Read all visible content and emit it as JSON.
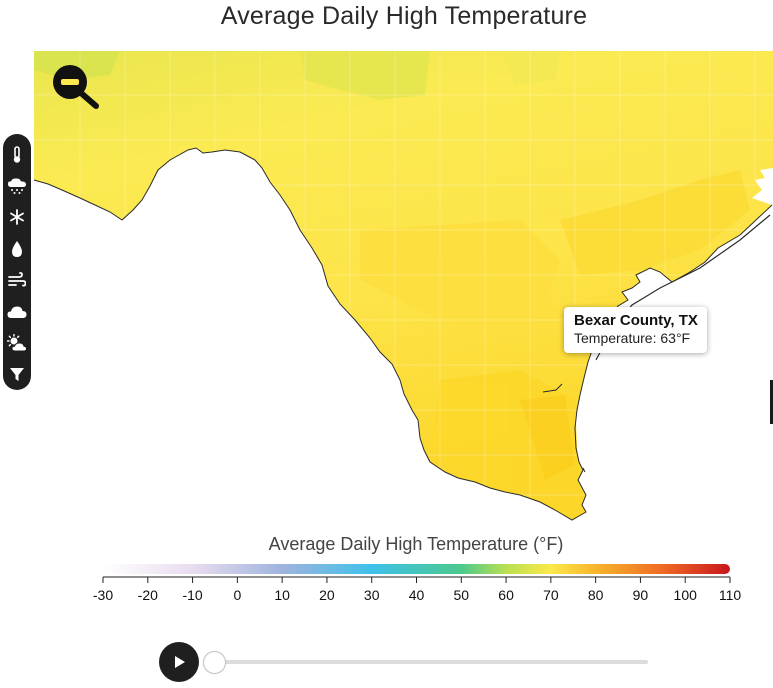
{
  "title": "Average Daily High Temperature",
  "tooltip": {
    "county": "Bexar County, TX",
    "temperature_text": "Temperature: 63°F"
  },
  "legend": {
    "title": "Average Daily High Temperature (°F)",
    "ticks": [
      "-30",
      "-20",
      "-10",
      "0",
      "10",
      "20",
      "30",
      "40",
      "50",
      "60",
      "70",
      "80",
      "90",
      "100",
      "110"
    ],
    "color_stops": [
      {
        "value": -30,
        "color": "#ffffff"
      },
      {
        "value": -10,
        "color": "#e8dcef"
      },
      {
        "value": 10,
        "color": "#9fb4de"
      },
      {
        "value": 30,
        "color": "#3ec1ea"
      },
      {
        "value": 50,
        "color": "#4dc98d"
      },
      {
        "value": 60,
        "color": "#b9df52"
      },
      {
        "value": 70,
        "color": "#fbe94a"
      },
      {
        "value": 80,
        "color": "#f7b52c"
      },
      {
        "value": 95,
        "color": "#ef6a24"
      },
      {
        "value": 110,
        "color": "#c8161d"
      }
    ]
  },
  "toolbar": [
    {
      "icon": "thermometer-icon"
    },
    {
      "icon": "rain-icon"
    },
    {
      "icon": "snowflake-icon"
    },
    {
      "icon": "droplet-icon"
    },
    {
      "icon": "wind-icon"
    },
    {
      "icon": "cloud-icon"
    },
    {
      "icon": "partly-sunny-icon"
    },
    {
      "icon": "filter-icon"
    }
  ],
  "zoom_control": {
    "icon": "zoom-out-icon"
  },
  "playback": {
    "icon": "play-icon",
    "position": 0
  },
  "colors": {
    "land_yellow": "#fde84f",
    "land_gold": "#fcd82a",
    "land_green": "#d4e54d",
    "ocean": "#ffffff",
    "toolbar_bg": "#1f1f1f"
  }
}
